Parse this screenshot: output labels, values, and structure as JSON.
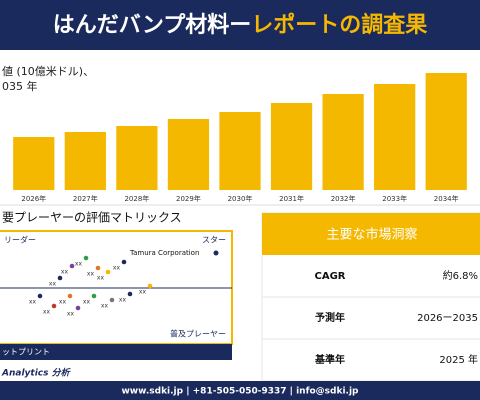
{
  "header": {
    "title_main": "はんだバンプ材料ー",
    "title_accent": "レポートの調査果"
  },
  "chart_data": {
    "type": "bar",
    "y_label": [
      "値 (10億米ドル)、",
      "035 年"
    ],
    "categories": [
      "2026年",
      "2027年",
      "2028年",
      "2029年",
      "2030年",
      "2031年",
      "2032年",
      "2033年",
      "2034年"
    ],
    "values": [
      53,
      58,
      64,
      71,
      78,
      87,
      96,
      106,
      117
    ],
    "color": "#f5b800",
    "ylim": [
      0,
      135
    ]
  },
  "matrix": {
    "title": "要プレーヤーの評価マトリックス",
    "top_left": "リーダー",
    "top_right": "スター",
    "bottom_right": "普及プレーヤー",
    "highlight": "Tamura Corporation",
    "axis_label": "ットプリント",
    "point_labels": [
      "xx",
      "xx",
      "xx",
      "xx",
      "xx",
      "xx",
      "xx",
      "xx",
      "xx",
      "xx",
      "xx",
      "xx",
      "xx",
      "xx"
    ],
    "footer": "Analytics 分析"
  },
  "insights": {
    "title": "主要な市場洞察",
    "rows": [
      [
        "CAGR",
        "約6.8%"
      ],
      [
        "予測年",
        "2026ー2035"
      ],
      [
        "基準年",
        "2025 年"
      ]
    ]
  },
  "footer": "www.sdki.jp | +81-505-050-9337 | info@sdki.jp"
}
